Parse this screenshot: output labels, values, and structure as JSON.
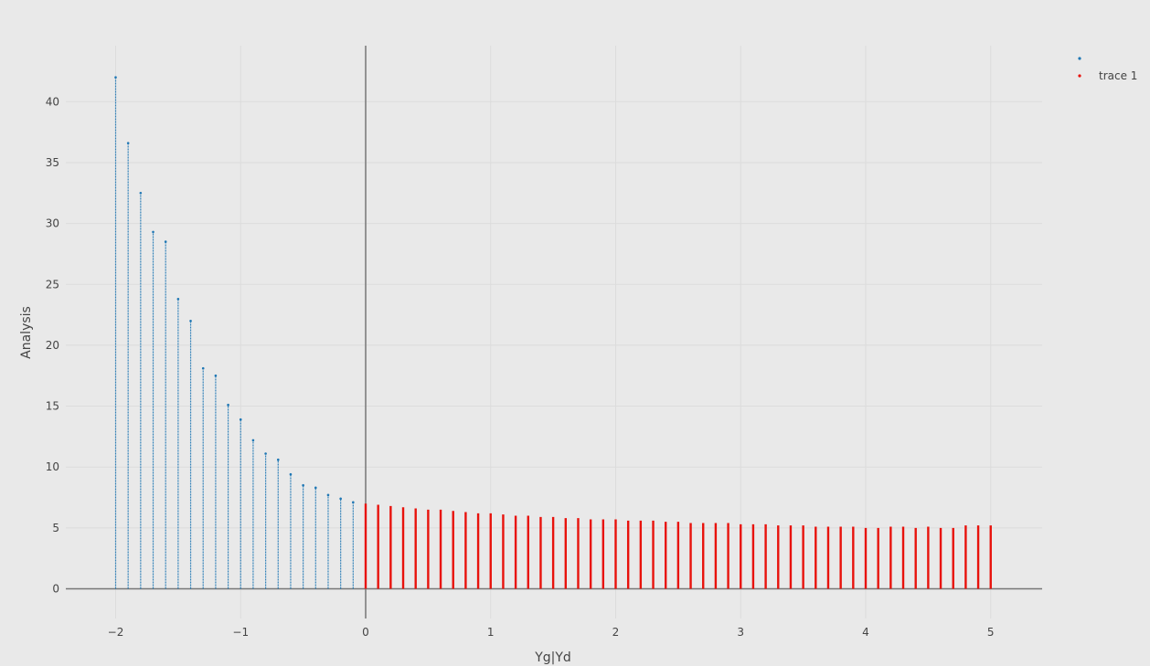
{
  "chart_data": {
    "type": "scatter",
    "title": "",
    "xlabel": "Yg|Yd",
    "ylabel": "Analysis",
    "xlim": [
      -2.4,
      5.4
    ],
    "ylim": [
      -2.4,
      44.5
    ],
    "x_ticks": [
      -2,
      -1,
      0,
      1,
      2,
      3,
      4,
      5
    ],
    "x_tick_labels": [
      "−2",
      "−1",
      "0",
      "1",
      "2",
      "3",
      "4",
      "5"
    ],
    "y_ticks": [
      0,
      5,
      10,
      15,
      20,
      25,
      30,
      35,
      40
    ],
    "y_tick_labels": [
      "0",
      "5",
      "10",
      "15",
      "20",
      "25",
      "30",
      "35",
      "40"
    ],
    "grid": true,
    "zero_lines": true,
    "legend": "top-right",
    "series": [
      {
        "name": "",
        "color": "#1f77b4",
        "description_note": "vertical dot columns from 0 to max value at each x",
        "x": [
          -2.0,
          -1.9,
          -1.8,
          -1.7,
          -1.6,
          -1.5,
          -1.4,
          -1.3,
          -1.2,
          -1.1,
          -1.0,
          -0.9,
          -0.8,
          -0.7,
          -0.6,
          -0.5,
          -0.4,
          -0.3,
          -0.2,
          -0.1
        ],
        "y": [
          42.0,
          36.6,
          32.5,
          29.3,
          28.5,
          23.8,
          22.0,
          18.1,
          17.5,
          15.1,
          13.9,
          12.2,
          11.1,
          10.6,
          9.4,
          8.5,
          8.3,
          7.7,
          7.4,
          7.1
        ]
      },
      {
        "name": "trace 1",
        "color": "#e8120c",
        "x": [
          0.0,
          0.1,
          0.2,
          0.3,
          0.4,
          0.5,
          0.6,
          0.7,
          0.8,
          0.9,
          1.0,
          1.1,
          1.2,
          1.3,
          1.4,
          1.5,
          1.6,
          1.7,
          1.8,
          1.9,
          2.0,
          2.1,
          2.2,
          2.3,
          2.4,
          2.5,
          2.6,
          2.7,
          2.8,
          2.9,
          3.0,
          3.1,
          3.2,
          3.3,
          3.4,
          3.5,
          3.6,
          3.7,
          3.8,
          3.9,
          4.0,
          4.1,
          4.2,
          4.3,
          4.4,
          4.5,
          4.6,
          4.7,
          4.8,
          4.9,
          5.0
        ],
        "y": [
          7.0,
          6.9,
          6.8,
          6.7,
          6.6,
          6.5,
          6.5,
          6.4,
          6.3,
          6.2,
          6.2,
          6.1,
          6.0,
          6.0,
          5.9,
          5.9,
          5.8,
          5.8,
          5.7,
          5.7,
          5.7,
          5.6,
          5.6,
          5.6,
          5.5,
          5.5,
          5.4,
          5.4,
          5.4,
          5.4,
          5.3,
          5.3,
          5.3,
          5.2,
          5.2,
          5.2,
          5.1,
          5.1,
          5.1,
          5.1,
          5.0,
          5.0,
          5.1,
          5.1,
          5.0,
          5.1,
          5.0,
          5.0,
          5.2,
          5.2,
          5.2
        ]
      }
    ]
  }
}
